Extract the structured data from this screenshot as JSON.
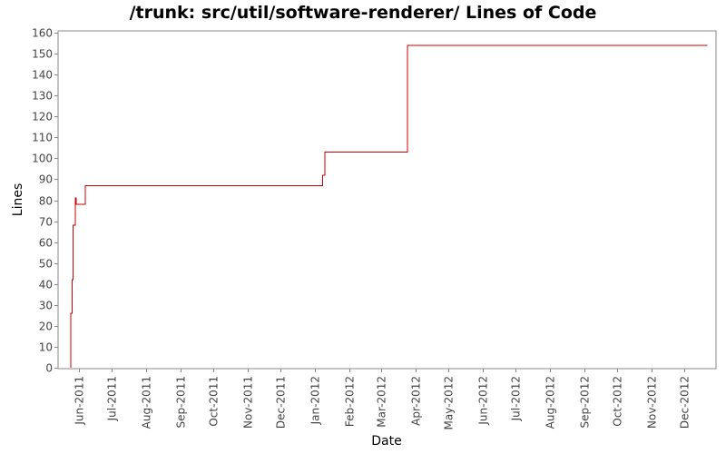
{
  "chart_data": {
    "type": "line",
    "step": true,
    "title": "/trunk: src/util/software-renderer/ Lines of Code",
    "xlabel": "Date",
    "ylabel": "Lines",
    "ylim": [
      0,
      160
    ],
    "yticks": [
      0,
      10,
      20,
      30,
      40,
      50,
      60,
      70,
      80,
      90,
      100,
      110,
      120,
      130,
      140,
      150,
      160
    ],
    "xlim": [
      "2011-05-15",
      "2012-12-28"
    ],
    "xticks": [
      {
        "date": "2011-06-01",
        "label": "Jun-2011"
      },
      {
        "date": "2011-07-01",
        "label": "Jul-2011"
      },
      {
        "date": "2011-08-01",
        "label": "Aug-2011"
      },
      {
        "date": "2011-09-01",
        "label": "Sep-2011"
      },
      {
        "date": "2011-10-01",
        "label": "Oct-2011"
      },
      {
        "date": "2011-11-01",
        "label": "Nov-2011"
      },
      {
        "date": "2011-12-01",
        "label": "Dec-2011"
      },
      {
        "date": "2012-01-01",
        "label": "Jan-2012"
      },
      {
        "date": "2012-02-01",
        "label": "Feb-2012"
      },
      {
        "date": "2012-03-01",
        "label": "Mar-2012"
      },
      {
        "date": "2012-04-01",
        "label": "Apr-2012"
      },
      {
        "date": "2012-05-01",
        "label": "May-2012"
      },
      {
        "date": "2012-06-01",
        "label": "Jun-2012"
      },
      {
        "date": "2012-07-01",
        "label": "Jul-2012"
      },
      {
        "date": "2012-08-01",
        "label": "Aug-2012"
      },
      {
        "date": "2012-09-01",
        "label": "Sep-2012"
      },
      {
        "date": "2012-10-01",
        "label": "Oct-2012"
      },
      {
        "date": "2012-11-01",
        "label": "Nov-2012"
      },
      {
        "date": "2012-12-01",
        "label": "Dec-2012"
      }
    ],
    "grid": false,
    "colors": {
      "series": "#cc0000",
      "axis": "#888888"
    },
    "series": [
      {
        "points": [
          {
            "date": "2011-05-25",
            "value": 0
          },
          {
            "date": "2011-05-25",
            "value": 26
          },
          {
            "date": "2011-05-26",
            "value": 42
          },
          {
            "date": "2011-05-27",
            "value": 68
          },
          {
            "date": "2011-05-29",
            "value": 81
          },
          {
            "date": "2011-05-30",
            "value": 78
          },
          {
            "date": "2011-06-07",
            "value": 87
          },
          {
            "date": "2012-01-08",
            "value": 92
          },
          {
            "date": "2012-01-10",
            "value": 103
          },
          {
            "date": "2012-03-25",
            "value": 154
          },
          {
            "date": "2012-12-22",
            "value": 154
          }
        ]
      }
    ]
  }
}
